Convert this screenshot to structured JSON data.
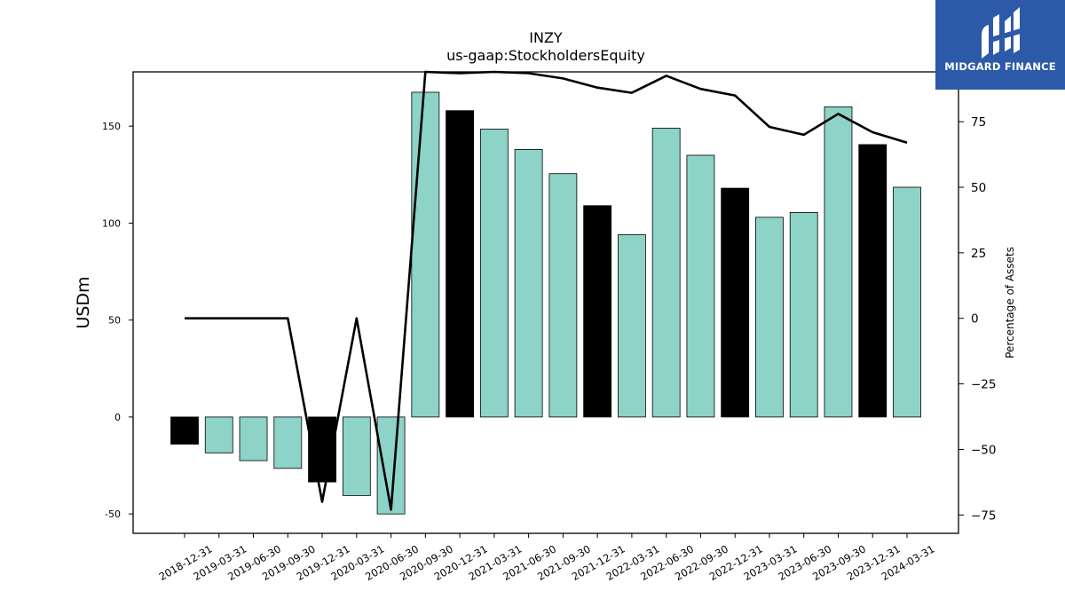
{
  "chart_data": {
    "type": "bar",
    "title": "INZY",
    "subtitle": "us-gaap:StockholdersEquity",
    "ylabel": "USDm",
    "y2label": "Percentage of Assets",
    "ylim": [
      -60,
      178
    ],
    "y2lim": [
      -82,
      94
    ],
    "yticks": [
      -50,
      0,
      50,
      100,
      150
    ],
    "y2ticks": [
      -75,
      -50,
      -25,
      0,
      25,
      50,
      75
    ],
    "categories": [
      "2018-12-31",
      "2019-03-31",
      "2019-06-30",
      "2019-09-30",
      "2019-12-31",
      "2020-03-31",
      "2020-06-30",
      "2020-09-30",
      "2020-12-31",
      "2021-03-31",
      "2021-06-30",
      "2021-09-30",
      "2021-12-31",
      "2022-03-31",
      "2022-06-30",
      "2022-09-30",
      "2022-12-31",
      "2023-03-31",
      "2023-06-30",
      "2023-09-30",
      "2023-12-31",
      "2024-03-31"
    ],
    "series": [
      {
        "type": "bar",
        "values": [
          -14,
          -18.5,
          -22.5,
          -26.5,
          -33.5,
          -40.5,
          -50,
          167.5,
          158,
          148.5,
          138,
          125.5,
          109,
          94,
          149,
          135,
          118,
          103,
          105.5,
          160,
          140.5,
          118.5
        ],
        "colors": [
          "#000000",
          "#8dd3c7",
          "#8dd3c7",
          "#8dd3c7",
          "#000000",
          "#8dd3c7",
          "#8dd3c7",
          "#8dd3c7",
          "#000000",
          "#8dd3c7",
          "#8dd3c7",
          "#8dd3c7",
          "#000000",
          "#8dd3c7",
          "#8dd3c7",
          "#8dd3c7",
          "#000000",
          "#8dd3c7",
          "#8dd3c7",
          "#8dd3c7",
          "#000000",
          "#8dd3c7"
        ]
      },
      {
        "type": "line",
        "axis": "right",
        "values": [
          0,
          0,
          0,
          0,
          -70,
          0,
          -73,
          94,
          93.5,
          94,
          93.5,
          91.5,
          88,
          86,
          92.5,
          87.5,
          85,
          73,
          70,
          78,
          71,
          67
        ],
        "color": "#000000"
      }
    ],
    "grid": false
  },
  "logo": {
    "text": "MIDGARD FINANCE",
    "background": "#2c5aa9"
  }
}
